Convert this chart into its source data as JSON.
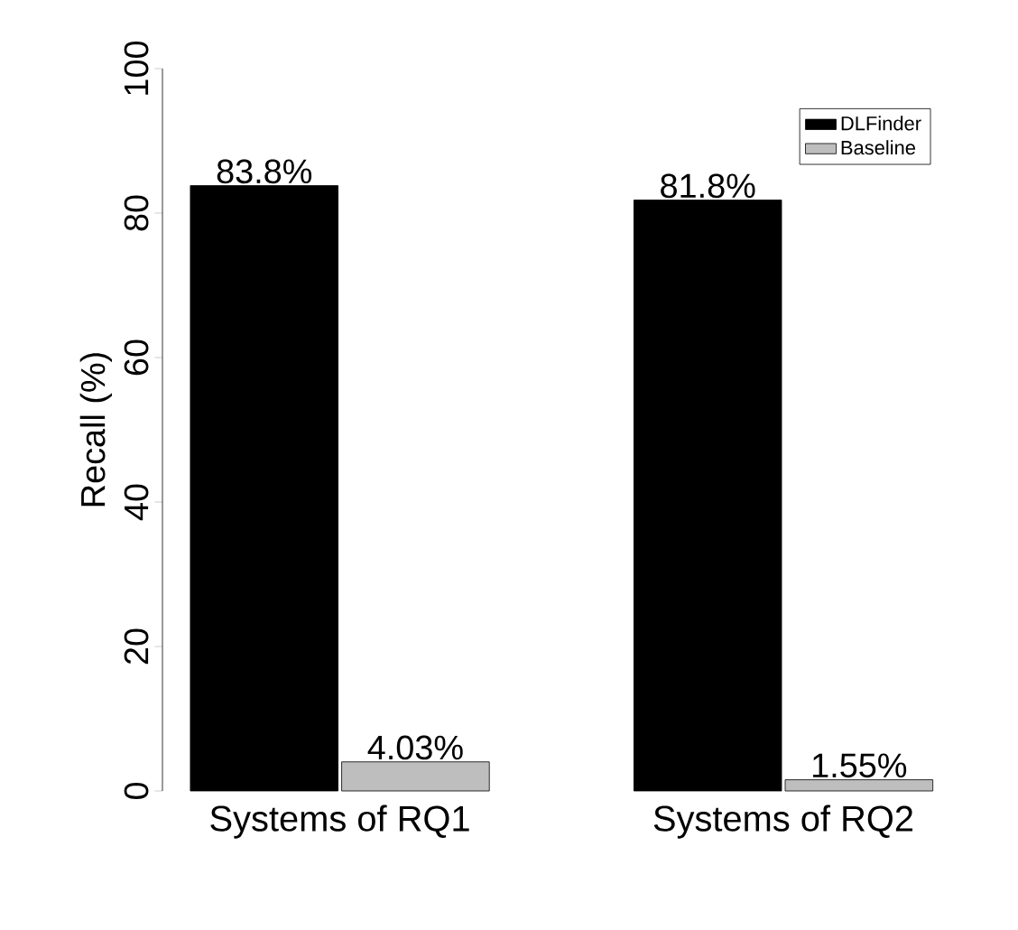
{
  "chart_data": {
    "type": "bar",
    "ylabel": "Recall (%)",
    "categories": [
      "Systems of RQ1",
      "Systems of RQ2"
    ],
    "series": [
      {
        "name": "DLFinder",
        "color": "#000000",
        "values": [
          83.8,
          81.8
        ],
        "value_labels": [
          "83.8%",
          "81.8%"
        ]
      },
      {
        "name": "Baseline",
        "color": "#bebebe",
        "values": [
          4.03,
          1.55
        ],
        "value_labels": [
          "4.03%",
          "1.55%"
        ]
      }
    ],
    "ylim": [
      0,
      100
    ],
    "yticks": [
      0,
      20,
      40,
      60,
      80,
      100
    ],
    "legend": "top right",
    "grid": false
  }
}
